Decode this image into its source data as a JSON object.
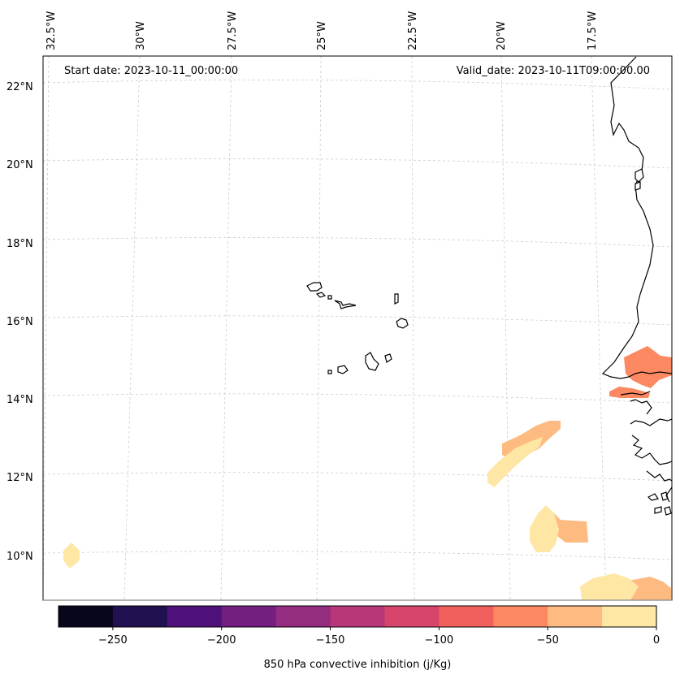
{
  "annotations": {
    "start_date": "Start date: 2023-10-11_00:00:00",
    "valid_date": "Valid_date: 2023-10-11T09:00:00.00"
  },
  "longitude_labels": [
    "32.5°W",
    "30°W",
    "27.5°W",
    "25°W",
    "22.5°W",
    "20°W",
    "17.5°W"
  ],
  "latitude_labels": [
    "22°N",
    "20°N",
    "18°N",
    "16°N",
    "14°N",
    "12°N",
    "10°N"
  ],
  "colorbar": {
    "label": "850 hPa convective inhibition (j/Kg)",
    "tick_labels": [
      "−250",
      "−200",
      "−150",
      "−100",
      "−50",
      "0"
    ],
    "levels": [
      -275,
      -250,
      -225,
      -200,
      -175,
      -150,
      -125,
      -100,
      -75,
      -50,
      -25,
      0
    ],
    "colors": [
      "#07061c",
      "#221150",
      "#4f127b",
      "#721f81",
      "#942c80",
      "#b73779",
      "#d8456c",
      "#f1605d",
      "#fc8961",
      "#febb81",
      "#fee6a5"
    ]
  },
  "legend": {
    "color_dark_orange": "#fc8961",
    "color_light_orange": "#febb81",
    "color_pale_yellow": "#fee6a5"
  }
}
